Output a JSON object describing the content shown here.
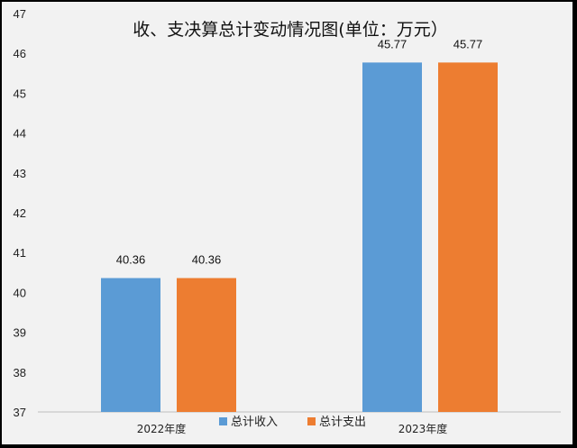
{
  "chart_data": {
    "type": "bar",
    "title": "收、支决算总计变动情况图(单位：万元）",
    "categories": [
      "2022年度",
      "2023年度"
    ],
    "series": [
      {
        "name": "总计收入",
        "values": [
          40.36,
          45.77
        ],
        "labels": [
          "40.36",
          "45.77"
        ],
        "color": "#5b9bd5"
      },
      {
        "name": "总计支出",
        "values": [
          40.36,
          45.77
        ],
        "labels": [
          "40.36",
          "45.77"
        ],
        "color": "#ed7d31"
      }
    ],
    "ylim": [
      37,
      47
    ],
    "yticks": [
      "37",
      "38",
      "39",
      "40",
      "41",
      "42",
      "43",
      "44",
      "45",
      "46",
      "47"
    ],
    "xlabel": "",
    "ylabel": "",
    "grid": false,
    "legend": "bottom"
  }
}
